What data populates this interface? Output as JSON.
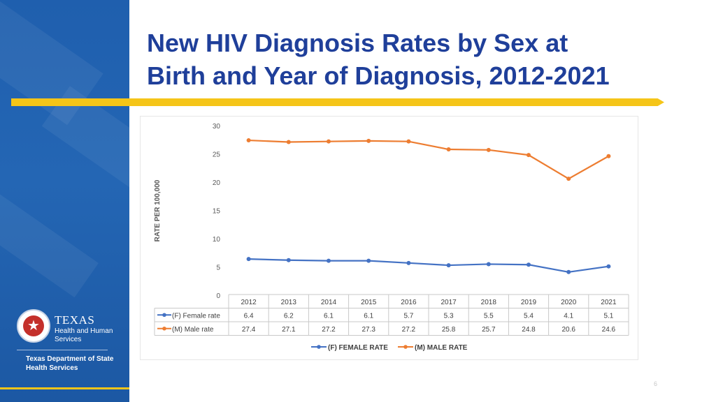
{
  "slide": {
    "title_line1": "New HIV Diagnosis Rates by Sex at",
    "title_line2": "Birth and Year of Diagnosis, 2012-2021",
    "page_number": "6"
  },
  "logo": {
    "texas": "TEXAS",
    "hhs": "Health and Human Services",
    "dshs": "Texas Department of State Health Services"
  },
  "colors": {
    "title": "#1f3f9a",
    "accent_gold": "#f5c518",
    "female_series": "#4472c4",
    "male_series": "#ed7d31"
  },
  "chart_data": {
    "type": "line",
    "title": "",
    "ylabel": "RATE PER 100,000",
    "xlabel": "",
    "ylim": [
      0,
      30
    ],
    "yticks": [
      0,
      5,
      10,
      15,
      20,
      25,
      30
    ],
    "categories": [
      "2012",
      "2013",
      "2014",
      "2015",
      "2016",
      "2017",
      "2018",
      "2019",
      "2020",
      "2021"
    ],
    "series": [
      {
        "name": "(F) Female rate",
        "legend": "(F) FEMALE RATE",
        "color": "#4472c4",
        "values": [
          6.4,
          6.2,
          6.1,
          6.1,
          5.7,
          5.3,
          5.5,
          5.4,
          4.1,
          5.1
        ],
        "labels": [
          "6.4",
          "6.2",
          "6.1",
          "6.1",
          "5.7",
          "5.3",
          "5.5",
          "5.4",
          "4.1",
          "5.1"
        ]
      },
      {
        "name": "(M) Male rate",
        "legend": "(M) MALE RATE",
        "color": "#ed7d31",
        "values": [
          27.4,
          27.1,
          27.2,
          27.3,
          27.2,
          25.8,
          25.7,
          24.8,
          20.6,
          24.6
        ],
        "labels": [
          "27.4",
          "27.1",
          "27.2",
          "27.3",
          "27.2",
          "25.8",
          "25.7",
          "24.8",
          "20.6",
          "24.6"
        ]
      }
    ],
    "data_table": true,
    "legend_position": "bottom"
  }
}
